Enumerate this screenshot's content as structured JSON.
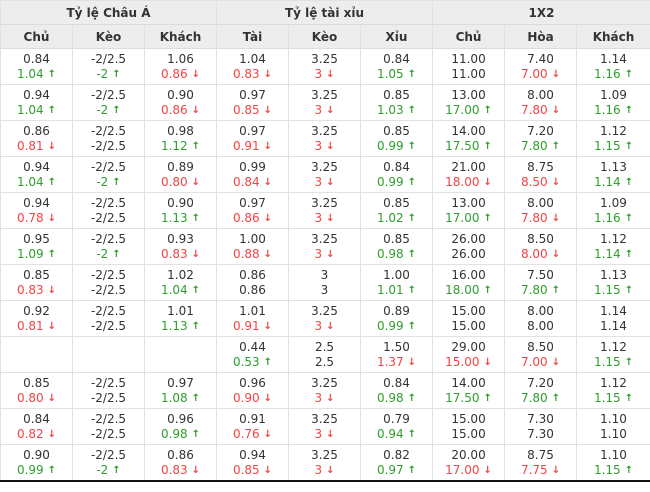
{
  "colors": {
    "up": "#2f9e2f",
    "down": "#f04545",
    "text": "#333333",
    "header_bg": "#ededed",
    "border": "#e2e2e2",
    "bottom_border": "#111111"
  },
  "icons": {
    "up_arrow": "↑",
    "down_arrow": "↓"
  },
  "table": {
    "group_headers": [
      {
        "label": "Tỷ lệ Châu Á"
      },
      {
        "label": "Tỷ lệ tài xỉu"
      },
      {
        "label": "1X2"
      }
    ],
    "column_headers": [
      "Chủ",
      "Kèo",
      "Khách",
      "Tài",
      "Kèo",
      "Xỉu",
      "Chủ",
      "Hòa",
      "Khách"
    ],
    "rows": [
      {
        "line1": [
          {
            "v": "0.84"
          },
          {
            "v": "-2/2.5"
          },
          {
            "v": "1.06"
          },
          {
            "v": "1.04"
          },
          {
            "v": "3.25"
          },
          {
            "v": "0.84"
          },
          {
            "v": "11.00"
          },
          {
            "v": "7.40"
          },
          {
            "v": "1.14"
          }
        ],
        "line2": [
          {
            "v": "1.04",
            "t": "up"
          },
          {
            "v": "-2",
            "t": "up"
          },
          {
            "v": "0.86",
            "t": "down"
          },
          {
            "v": "0.83",
            "t": "down"
          },
          {
            "v": "3",
            "t": "down"
          },
          {
            "v": "1.05",
            "t": "up"
          },
          {
            "v": "11.00"
          },
          {
            "v": "7.00",
            "t": "down"
          },
          {
            "v": "1.16",
            "t": "up"
          }
        ]
      },
      {
        "line1": [
          {
            "v": "0.94"
          },
          {
            "v": "-2/2.5"
          },
          {
            "v": "0.90"
          },
          {
            "v": "0.97"
          },
          {
            "v": "3.25"
          },
          {
            "v": "0.85"
          },
          {
            "v": "13.00"
          },
          {
            "v": "8.00"
          },
          {
            "v": "1.09"
          }
        ],
        "line2": [
          {
            "v": "1.04",
            "t": "up"
          },
          {
            "v": "-2",
            "t": "up"
          },
          {
            "v": "0.86",
            "t": "down"
          },
          {
            "v": "0.85",
            "t": "down"
          },
          {
            "v": "3",
            "t": "down"
          },
          {
            "v": "1.03",
            "t": "up"
          },
          {
            "v": "17.00",
            "t": "up"
          },
          {
            "v": "7.80",
            "t": "down"
          },
          {
            "v": "1.16",
            "t": "up"
          }
        ]
      },
      {
        "line1": [
          {
            "v": "0.86"
          },
          {
            "v": "-2/2.5"
          },
          {
            "v": "0.98"
          },
          {
            "v": "0.97"
          },
          {
            "v": "3.25"
          },
          {
            "v": "0.85"
          },
          {
            "v": "14.00"
          },
          {
            "v": "7.20"
          },
          {
            "v": "1.12"
          }
        ],
        "line2": [
          {
            "v": "0.81",
            "t": "down"
          },
          {
            "v": "-2/2.5"
          },
          {
            "v": "1.12",
            "t": "up"
          },
          {
            "v": "0.91",
            "t": "down"
          },
          {
            "v": "3",
            "t": "down"
          },
          {
            "v": "0.99",
            "t": "up"
          },
          {
            "v": "17.50",
            "t": "up"
          },
          {
            "v": "7.80",
            "t": "up"
          },
          {
            "v": "1.15",
            "t": "up"
          }
        ]
      },
      {
        "line1": [
          {
            "v": "0.94"
          },
          {
            "v": "-2/2.5"
          },
          {
            "v": "0.89"
          },
          {
            "v": "0.99"
          },
          {
            "v": "3.25"
          },
          {
            "v": "0.84"
          },
          {
            "v": "21.00"
          },
          {
            "v": "8.75"
          },
          {
            "v": "1.13"
          }
        ],
        "line2": [
          {
            "v": "1.04",
            "t": "up"
          },
          {
            "v": "-2",
            "t": "up"
          },
          {
            "v": "0.80",
            "t": "down"
          },
          {
            "v": "0.84",
            "t": "down"
          },
          {
            "v": "3",
            "t": "down"
          },
          {
            "v": "0.99",
            "t": "up"
          },
          {
            "v": "18.00",
            "t": "down"
          },
          {
            "v": "8.50",
            "t": "down"
          },
          {
            "v": "1.14",
            "t": "up"
          }
        ]
      },
      {
        "line1": [
          {
            "v": "0.94"
          },
          {
            "v": "-2/2.5"
          },
          {
            "v": "0.90"
          },
          {
            "v": "0.97"
          },
          {
            "v": "3.25"
          },
          {
            "v": "0.85"
          },
          {
            "v": "13.00"
          },
          {
            "v": "8.00"
          },
          {
            "v": "1.09"
          }
        ],
        "line2": [
          {
            "v": "0.78",
            "t": "down"
          },
          {
            "v": "-2/2.5"
          },
          {
            "v": "1.13",
            "t": "up"
          },
          {
            "v": "0.86",
            "t": "down"
          },
          {
            "v": "3",
            "t": "down"
          },
          {
            "v": "1.02",
            "t": "up"
          },
          {
            "v": "17.00",
            "t": "up"
          },
          {
            "v": "7.80",
            "t": "down"
          },
          {
            "v": "1.16",
            "t": "up"
          }
        ]
      },
      {
        "line1": [
          {
            "v": "0.95"
          },
          {
            "v": "-2/2.5"
          },
          {
            "v": "0.93"
          },
          {
            "v": "1.00"
          },
          {
            "v": "3.25"
          },
          {
            "v": "0.85"
          },
          {
            "v": "26.00"
          },
          {
            "v": "8.50"
          },
          {
            "v": "1.12"
          }
        ],
        "line2": [
          {
            "v": "1.09",
            "t": "up"
          },
          {
            "v": "-2",
            "t": "up"
          },
          {
            "v": "0.83",
            "t": "down"
          },
          {
            "v": "0.88",
            "t": "down"
          },
          {
            "v": "3",
            "t": "down"
          },
          {
            "v": "0.98",
            "t": "up"
          },
          {
            "v": "26.00"
          },
          {
            "v": "8.00",
            "t": "down"
          },
          {
            "v": "1.14",
            "t": "up"
          }
        ]
      },
      {
        "line1": [
          {
            "v": "0.85"
          },
          {
            "v": "-2/2.5"
          },
          {
            "v": "1.02"
          },
          {
            "v": "0.86"
          },
          {
            "v": "3"
          },
          {
            "v": "1.00"
          },
          {
            "v": "16.00"
          },
          {
            "v": "7.50"
          },
          {
            "v": "1.13"
          }
        ],
        "line2": [
          {
            "v": "0.83",
            "t": "down"
          },
          {
            "v": "-2/2.5"
          },
          {
            "v": "1.04",
            "t": "up"
          },
          {
            "v": "0.86"
          },
          {
            "v": "3"
          },
          {
            "v": "1.01",
            "t": "up"
          },
          {
            "v": "18.00",
            "t": "up"
          },
          {
            "v": "7.80",
            "t": "up"
          },
          {
            "v": "1.15",
            "t": "up"
          }
        ]
      },
      {
        "line1": [
          {
            "v": "0.92"
          },
          {
            "v": "-2/2.5"
          },
          {
            "v": "1.01"
          },
          {
            "v": "1.01"
          },
          {
            "v": "3.25"
          },
          {
            "v": "0.89"
          },
          {
            "v": "15.00"
          },
          {
            "v": "8.00"
          },
          {
            "v": "1.14"
          }
        ],
        "line2": [
          {
            "v": "0.81",
            "t": "down"
          },
          {
            "v": "-2/2.5"
          },
          {
            "v": "1.13",
            "t": "up"
          },
          {
            "v": "0.91",
            "t": "down"
          },
          {
            "v": "3",
            "t": "down"
          },
          {
            "v": "0.99",
            "t": "up"
          },
          {
            "v": "15.00"
          },
          {
            "v": "8.00"
          },
          {
            "v": "1.14"
          }
        ]
      },
      {
        "line1": [
          {
            "v": ""
          },
          {
            "v": ""
          },
          {
            "v": ""
          },
          {
            "v": "0.44"
          },
          {
            "v": "2.5"
          },
          {
            "v": "1.50"
          },
          {
            "v": "29.00"
          },
          {
            "v": "8.50"
          },
          {
            "v": "1.12"
          }
        ],
        "line2": [
          {
            "v": ""
          },
          {
            "v": ""
          },
          {
            "v": ""
          },
          {
            "v": "0.53",
            "t": "up"
          },
          {
            "v": "2.5"
          },
          {
            "v": "1.37",
            "t": "down"
          },
          {
            "v": "15.00",
            "t": "down"
          },
          {
            "v": "7.00",
            "t": "down"
          },
          {
            "v": "1.15",
            "t": "up"
          }
        ]
      },
      {
        "line1": [
          {
            "v": "0.85"
          },
          {
            "v": "-2/2.5"
          },
          {
            "v": "0.97"
          },
          {
            "v": "0.96"
          },
          {
            "v": "3.25"
          },
          {
            "v": "0.84"
          },
          {
            "v": "14.00"
          },
          {
            "v": "7.20"
          },
          {
            "v": "1.12"
          }
        ],
        "line2": [
          {
            "v": "0.80",
            "t": "down"
          },
          {
            "v": "-2/2.5"
          },
          {
            "v": "1.08",
            "t": "up"
          },
          {
            "v": "0.90",
            "t": "down"
          },
          {
            "v": "3",
            "t": "down"
          },
          {
            "v": "0.98",
            "t": "up"
          },
          {
            "v": "17.50",
            "t": "up"
          },
          {
            "v": "7.80",
            "t": "up"
          },
          {
            "v": "1.15",
            "t": "up"
          }
        ]
      },
      {
        "line1": [
          {
            "v": "0.84"
          },
          {
            "v": "-2/2.5"
          },
          {
            "v": "0.96"
          },
          {
            "v": "0.91"
          },
          {
            "v": "3.25"
          },
          {
            "v": "0.79"
          },
          {
            "v": "15.00"
          },
          {
            "v": "7.30"
          },
          {
            "v": "1.10"
          }
        ],
        "line2": [
          {
            "v": "0.82",
            "t": "down"
          },
          {
            "v": "-2/2.5"
          },
          {
            "v": "0.98",
            "t": "up"
          },
          {
            "v": "0.76",
            "t": "down"
          },
          {
            "v": "3",
            "t": "down"
          },
          {
            "v": "0.94",
            "t": "up"
          },
          {
            "v": "15.00"
          },
          {
            "v": "7.30"
          },
          {
            "v": "1.10"
          }
        ]
      },
      {
        "line1": [
          {
            "v": "0.90"
          },
          {
            "v": "-2/2.5"
          },
          {
            "v": "0.86"
          },
          {
            "v": "0.94"
          },
          {
            "v": "3.25"
          },
          {
            "v": "0.82"
          },
          {
            "v": "20.00"
          },
          {
            "v": "8.75"
          },
          {
            "v": "1.10"
          }
        ],
        "line2": [
          {
            "v": "0.99",
            "t": "up"
          },
          {
            "v": "-2",
            "t": "up"
          },
          {
            "v": "0.83",
            "t": "down"
          },
          {
            "v": "0.85",
            "t": "down"
          },
          {
            "v": "3",
            "t": "down"
          },
          {
            "v": "0.97",
            "t": "up"
          },
          {
            "v": "17.00",
            "t": "down"
          },
          {
            "v": "7.75",
            "t": "down"
          },
          {
            "v": "1.15",
            "t": "up"
          }
        ]
      }
    ]
  }
}
